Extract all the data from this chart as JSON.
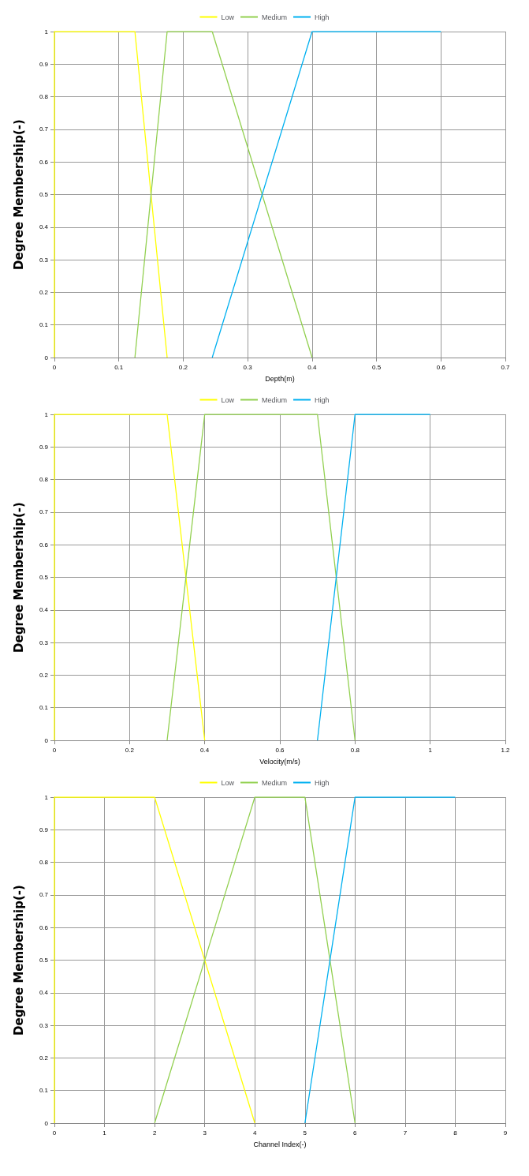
{
  "chart_data": [
    {
      "type": "line",
      "xlabel": "Depth(m)",
      "ylabel": "Degree Membership(-)",
      "xlim": [
        0,
        0.7
      ],
      "xticks": [
        0,
        0.1,
        0.2,
        0.3,
        0.4,
        0.5,
        0.6,
        0.7
      ],
      "ylim": [
        0,
        1
      ],
      "yticks": [
        0,
        0.1,
        0.2,
        0.3,
        0.4,
        0.5,
        0.6,
        0.7,
        0.8,
        0.9,
        1
      ],
      "grid": true,
      "legend": "top",
      "marker": "none",
      "line_style": "solid",
      "series": [
        {
          "name": "Low",
          "color": "#ffff00",
          "x": [
            0,
            0,
            0.125,
            0.175
          ],
          "values": [
            0,
            1,
            1,
            0
          ]
        },
        {
          "name": "Medium",
          "color": "#92d050",
          "x": [
            0.125,
            0.175,
            0.245,
            0.4
          ],
          "values": [
            0,
            1,
            1,
            0
          ]
        },
        {
          "name": "High",
          "color": "#00b0f0",
          "x": [
            0.245,
            0.4,
            0.6
          ],
          "values": [
            0,
            1,
            1
          ]
        }
      ]
    },
    {
      "type": "line",
      "xlabel": "Velocity(m/s)",
      "ylabel": "Degree Membership(-)",
      "xlim": [
        0,
        1.2
      ],
      "xticks": [
        0,
        0.2,
        0.4,
        0.6,
        0.8,
        1,
        1.2
      ],
      "ylim": [
        0,
        1
      ],
      "yticks": [
        0,
        0.1,
        0.2,
        0.3,
        0.4,
        0.5,
        0.6,
        0.7,
        0.8,
        0.9,
        1
      ],
      "grid": true,
      "legend": "top",
      "marker": "none",
      "line_style": "solid",
      "series": [
        {
          "name": "Low",
          "color": "#ffff00",
          "x": [
            0,
            0,
            0.3,
            0.4
          ],
          "values": [
            0,
            1,
            1,
            0
          ]
        },
        {
          "name": "Medium",
          "color": "#92d050",
          "x": [
            0.3,
            0.4,
            0.7,
            0.8
          ],
          "values": [
            0,
            1,
            1,
            0
          ]
        },
        {
          "name": "High",
          "color": "#00b0f0",
          "x": [
            0.7,
            0.8,
            1
          ],
          "values": [
            0,
            1,
            1
          ]
        }
      ]
    },
    {
      "type": "line",
      "xlabel": "Channel Index(-)",
      "ylabel": "Degree Membership(-)",
      "xlim": [
        0,
        9
      ],
      "xticks": [
        0,
        1,
        2,
        3,
        4,
        5,
        6,
        7,
        8,
        9
      ],
      "ylim": [
        0,
        1
      ],
      "yticks": [
        0,
        0.1,
        0.2,
        0.3,
        0.4,
        0.5,
        0.6,
        0.7,
        0.8,
        0.9,
        1
      ],
      "grid": true,
      "legend": "top",
      "marker": "none",
      "line_style": "solid",
      "series": [
        {
          "name": "Low",
          "color": "#ffff00",
          "x": [
            0,
            0,
            2,
            4
          ],
          "values": [
            0,
            1,
            1,
            0
          ]
        },
        {
          "name": "Medium",
          "color": "#92d050",
          "x": [
            2,
            4,
            5,
            6
          ],
          "values": [
            0,
            1,
            1,
            0
          ]
        },
        {
          "name": "High",
          "color": "#00b0f0",
          "x": [
            5,
            6,
            8
          ],
          "values": [
            0,
            1,
            1
          ]
        }
      ]
    }
  ]
}
